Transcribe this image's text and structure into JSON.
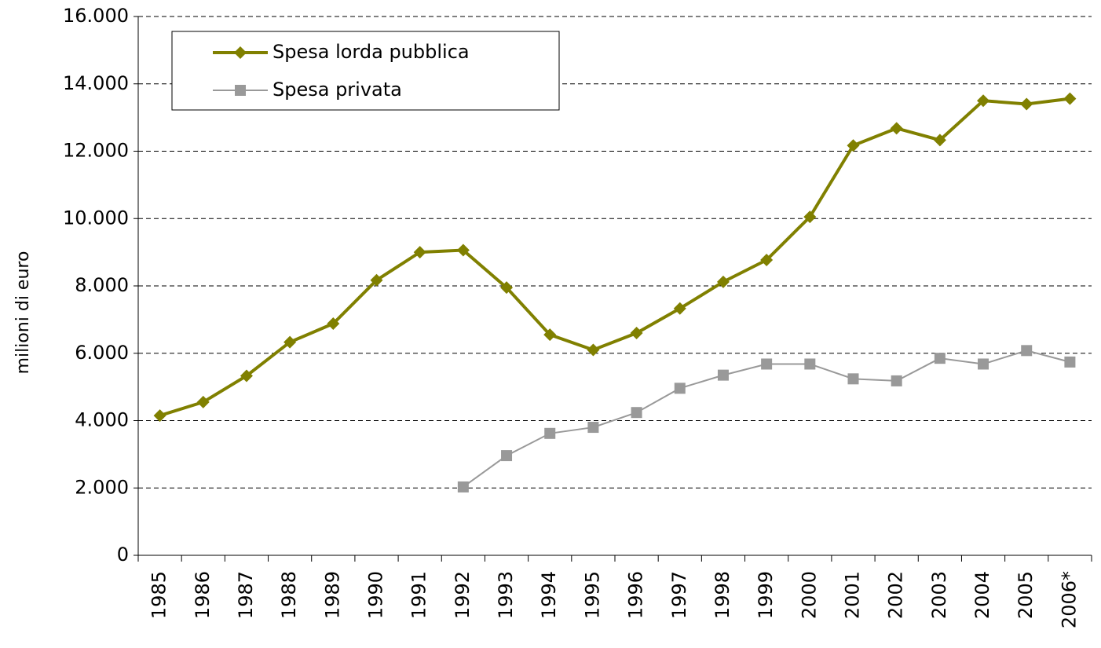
{
  "chart_data": {
    "type": "line",
    "y_label": "milioni di euro",
    "categories": [
      "1985",
      "1986",
      "1987",
      "1988",
      "1989",
      "1990",
      "1991",
      "1992",
      "1993",
      "1994",
      "1995",
      "1996",
      "1997",
      "1998",
      "1999",
      "2000",
      "2001",
      "2002",
      "2003",
      "2004",
      "2005",
      "2006*"
    ],
    "series": [
      {
        "name": "Spesa lorda pubblica",
        "color": "#808000",
        "marker": "diamond",
        "values": [
          4150,
          4550,
          5330,
          6330,
          6880,
          8170,
          9000,
          9060,
          7950,
          6550,
          6100,
          6600,
          7330,
          8120,
          8770,
          10050,
          12170,
          12680,
          12330,
          13500,
          13400,
          13560
        ]
      },
      {
        "name": "Spesa privata",
        "color": "#999999",
        "marker": "square",
        "values": [
          null,
          null,
          null,
          null,
          null,
          null,
          null,
          2030,
          2960,
          3620,
          3800,
          4240,
          4960,
          5350,
          5680,
          5680,
          5240,
          5180,
          5850,
          5680,
          6080,
          5740
        ]
      }
    ],
    "ylim": [
      0,
      16000
    ],
    "yticks": [
      0,
      {
        "value": 2000,
        "label": "2.000"
      },
      {
        "value": 4000,
        "label": "4.000"
      },
      {
        "value": 6000,
        "label": "6.000"
      },
      {
        "value": 8000,
        "label": "8.000"
      },
      {
        "value": 10000,
        "label": "10.000"
      },
      {
        "value": 12000,
        "label": "12.000"
      },
      {
        "value": 14000,
        "label": "14.000"
      },
      {
        "value": 16000,
        "label": "16.000"
      }
    ],
    "grid": true,
    "legend": "top-left"
  }
}
